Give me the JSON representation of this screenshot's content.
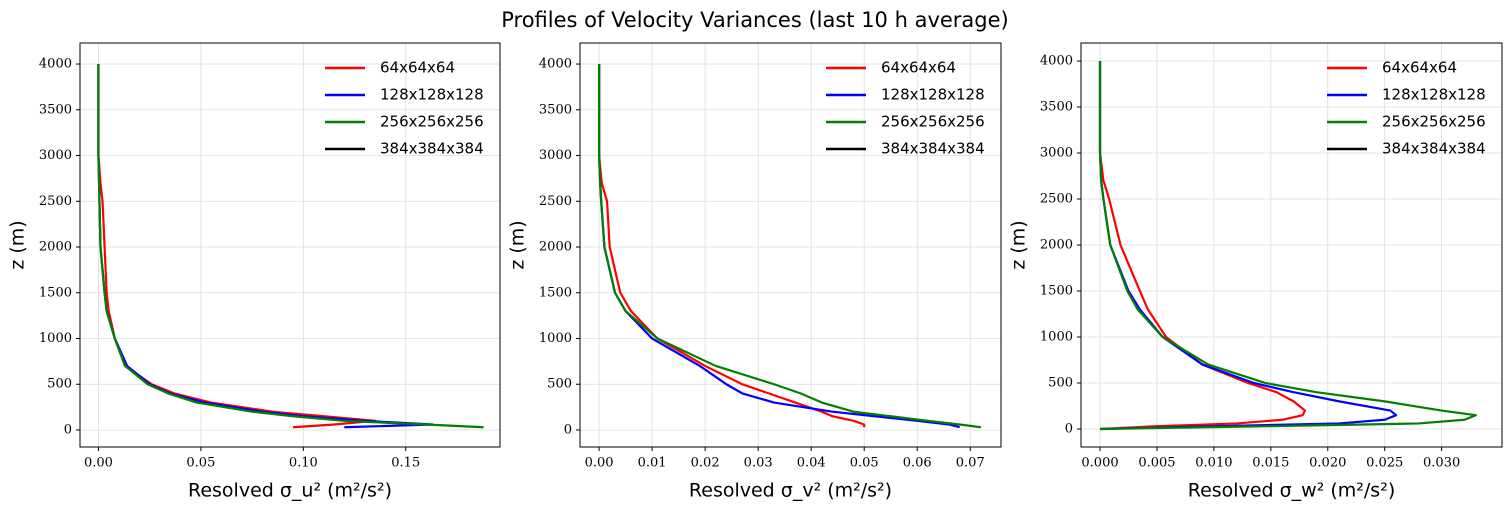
{
  "title": "Profiles of Velocity Variances (last 10 h average)",
  "chart_data": [
    {
      "type": "line",
      "xlabel": "Resolved σ_u² (m²/s²)",
      "ylabel": "z (m)",
      "xlim": [
        -0.009,
        0.196
      ],
      "ylim": [
        -186,
        4230
      ],
      "xticks": [
        {
          "value": 0,
          "label": "0.00"
        },
        0.05,
        {
          "value": 0.1,
          "label": "0.10"
        },
        0.15
      ],
      "yticks": [
        0,
        500,
        1000,
        1500,
        2000,
        2500,
        3000,
        3500,
        4000
      ],
      "grid": true,
      "legend": "upper right",
      "z": [
        30,
        60,
        100,
        150,
        200,
        300,
        400,
        500,
        700,
        1000,
        1300,
        1500,
        2000,
        2500,
        2700,
        3000,
        3500,
        4000
      ],
      "series": [
        {
          "name": "64x64x64",
          "color": "#ff0000",
          "values": [
            0.095,
            0.115,
            0.135,
            0.11,
            0.085,
            0.055,
            0.037,
            0.026,
            0.013,
            0.008,
            0.005,
            0.004,
            0.003,
            0.002,
            0.001,
            0,
            0,
            0
          ]
        },
        {
          "name": "128x128x128",
          "color": "#0000ff",
          "values": [
            0.12,
            0.163,
            0.13,
            0.1,
            0.08,
            0.052,
            0.035,
            0.025,
            0.014,
            0.008,
            0.004,
            0.003,
            0.001,
            0.0005,
            0.0003,
            0,
            0,
            0
          ]
        },
        {
          "name": "256x256x256",
          "color": "#008000",
          "values": [
            0.188,
            0.16,
            0.12,
            0.095,
            0.075,
            0.048,
            0.034,
            0.024,
            0.013,
            0.008,
            0.004,
            0.003,
            0.001,
            0.0005,
            0.0003,
            0,
            0,
            0
          ]
        },
        {
          "name": "384x384x384",
          "color": "#000000",
          "values": [
            null,
            null,
            null,
            null,
            null,
            null,
            null,
            null,
            null,
            null,
            null,
            null,
            null,
            null,
            null,
            null,
            null,
            null
          ]
        }
      ]
    },
    {
      "type": "line",
      "xlabel": "Resolved σ_v² (m²/s²)",
      "ylabel": "z (m)",
      "xlim": [
        -0.0036,
        0.0758
      ],
      "ylim": [
        -186,
        4230
      ],
      "xticks": [
        {
          "value": 0,
          "label": "0.00"
        },
        0.01,
        0.02,
        0.03,
        0.04,
        0.05,
        0.06,
        0.07
      ],
      "yticks": [
        0,
        500,
        1000,
        1500,
        2000,
        2500,
        3000,
        3500,
        4000
      ],
      "grid": true,
      "legend": "upper right",
      "z": [
        30,
        60,
        100,
        150,
        200,
        300,
        400,
        500,
        700,
        1000,
        1300,
        1500,
        2000,
        2500,
        2700,
        3000,
        3500,
        4000
      ],
      "series": [
        {
          "name": "64x64x64",
          "color": "#ff0000",
          "values": [
            0.05,
            0.05,
            0.048,
            0.044,
            0.042,
            0.037,
            0.032,
            0.027,
            0.02,
            0.011,
            0.006,
            0.004,
            0.002,
            0.0015,
            0.0005,
            0,
            0,
            0
          ]
        },
        {
          "name": "128x128x128",
          "color": "#0000ff",
          "values": [
            0.068,
            0.066,
            0.06,
            0.052,
            0.044,
            0.033,
            0.027,
            0.024,
            0.019,
            0.01,
            0.005,
            0.003,
            0.001,
            0.0004,
            0.0002,
            0,
            0,
            0
          ]
        },
        {
          "name": "256x256x256",
          "color": "#008000",
          "values": [
            0.072,
            0.068,
            0.062,
            0.055,
            0.048,
            0.042,
            0.038,
            0.033,
            0.022,
            0.011,
            0.005,
            0.003,
            0.001,
            0.0004,
            0.0002,
            0,
            0,
            0
          ]
        },
        {
          "name": "384x384x384",
          "color": "#000000",
          "values": [
            null,
            null,
            null,
            null,
            null,
            null,
            null,
            null,
            null,
            null,
            null,
            null,
            null,
            null,
            null,
            null,
            null,
            null
          ]
        }
      ]
    },
    {
      "type": "line",
      "xlabel": "Resolved σ_w² (m²/s²)",
      "ylabel": "z (m)",
      "xlim": [
        -0.00167,
        0.0353
      ],
      "ylim": [
        -196,
        4196
      ],
      "xticks": [
        {
          "value": 0,
          "label": "0.000"
        },
        {
          "value": 0.005,
          "label": "0.005"
        },
        {
          "value": 0.01,
          "label": "0.010"
        },
        {
          "value": 0.015,
          "label": "0.015"
        },
        {
          "value": 0.02,
          "label": "0.020"
        },
        {
          "value": 0.025,
          "label": "0.025"
        },
        {
          "value": 0.03,
          "label": "0.030"
        }
      ],
      "yticks": [
        0,
        500,
        1000,
        1500,
        2000,
        2500,
        3000,
        3500,
        4000
      ],
      "grid": true,
      "legend": "upper right",
      "z": [
        0,
        30,
        60,
        100,
        150,
        200,
        300,
        400,
        500,
        700,
        1000,
        1300,
        1500,
        2000,
        2500,
        2700,
        3000,
        3500,
        4000
      ],
      "series": [
        {
          "name": "64x64x64",
          "color": "#ff0000",
          "values": [
            0,
            0.005,
            0.012,
            0.016,
            0.0178,
            0.018,
            0.017,
            0.0155,
            0.013,
            0.009,
            0.0058,
            0.0042,
            0.0035,
            0.0018,
            0.0008,
            0.0003,
            0,
            0,
            0
          ]
        },
        {
          "name": "128x128x128",
          "color": "#0000ff",
          "values": [
            0,
            0.01,
            0.021,
            0.025,
            0.026,
            0.0255,
            0.021,
            0.017,
            0.0135,
            0.009,
            0.0055,
            0.0035,
            0.0025,
            0.0009,
            0.0003,
            0.0001,
            0,
            0,
            0
          ]
        },
        {
          "name": "256x256x256",
          "color": "#008000",
          "values": [
            0,
            0.015,
            0.028,
            0.032,
            0.033,
            0.03,
            0.025,
            0.019,
            0.0145,
            0.0095,
            0.0055,
            0.0033,
            0.0024,
            0.0009,
            0.0003,
            0.0001,
            0,
            0,
            0
          ]
        },
        {
          "name": "384x384x384",
          "color": "#000000",
          "values": [
            null,
            null,
            null,
            null,
            null,
            null,
            null,
            null,
            null,
            null,
            null,
            null,
            null,
            null,
            null,
            null,
            null,
            null,
            null
          ]
        }
      ]
    }
  ]
}
